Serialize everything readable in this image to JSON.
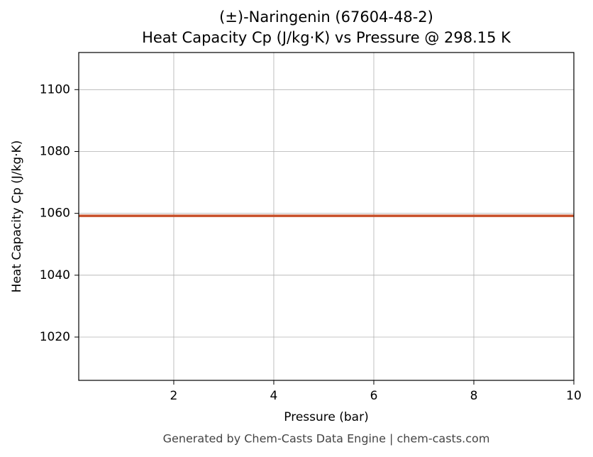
{
  "chart_data": {
    "type": "line",
    "title": "(±)-Naringenin (67604-48-2)",
    "subtitle": "Heat Capacity Cp (J/kg·K) vs Pressure @ 298.15 K",
    "x_label": "Pressure (bar)",
    "y_label": "Heat Capacity Cp (J/kg·K)",
    "footer": "Generated by Chem-Casts Data Engine | chem-casts.com",
    "x": [
      0.1,
      10
    ],
    "series": [
      {
        "name": "Cp",
        "color": "#c8502a",
        "values": [
          1059.2,
          1059.2
        ]
      }
    ],
    "xlim": [
      0.1,
      10
    ],
    "xticks": [
      2,
      4,
      6,
      8,
      10
    ],
    "ylim": [
      1006,
      1112
    ],
    "yticks": [
      1020,
      1040,
      1060,
      1080,
      1100
    ],
    "grid": true
  }
}
